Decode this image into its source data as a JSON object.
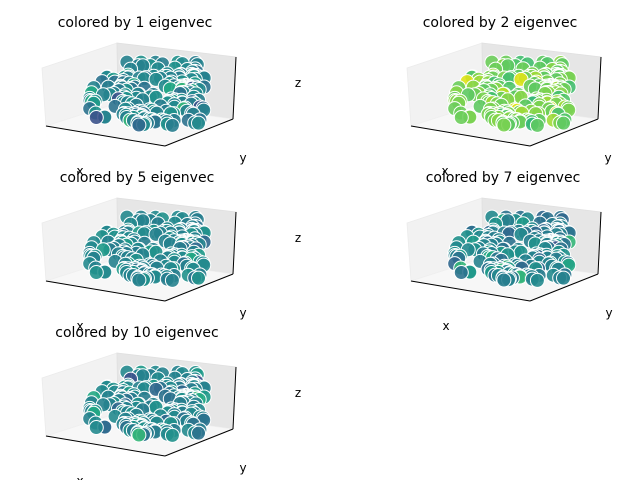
{
  "chart_data": [
    {
      "type": "scatter",
      "title": "colored by 1 eigenvec",
      "xlabel": "x",
      "ylabel": "y",
      "zlabel": "z",
      "projection": "3d",
      "colormap": "viridis",
      "grid": false,
      "palette": [
        "#3b528b",
        "#31688e",
        "#2c728e",
        "#287d8e",
        "#26828e",
        "#23898e",
        "#21918c",
        "#1f9a8a",
        "#22a884",
        "#35b779"
      ],
      "weights": [
        1,
        2,
        4,
        8,
        12,
        10,
        6,
        3,
        2,
        1
      ]
    },
    {
      "type": "scatter",
      "title": "colored by 2 eigenvec",
      "xlabel": "x",
      "ylabel": "y",
      "zlabel": "z",
      "projection": "3d",
      "colormap": "viridis",
      "grid": false,
      "palette": [
        "#35b779",
        "#44bf70",
        "#52c569",
        "#5ec962",
        "#6ccd5a",
        "#7ad151",
        "#86d549",
        "#a0da39",
        "#bddf26",
        "#dfe318"
      ],
      "weights": [
        1,
        3,
        5,
        10,
        12,
        10,
        6,
        3,
        1,
        1
      ]
    },
    {
      "type": "scatter",
      "title": "colored by 5 eigenvec",
      "xlabel": "x",
      "ylabel": "y",
      "zlabel": "z",
      "projection": "3d",
      "colormap": "viridis",
      "grid": false,
      "palette": [
        "#3b528b",
        "#31688e",
        "#2c728e",
        "#287d8e",
        "#26828e",
        "#23898e",
        "#21918c",
        "#1f9a8a",
        "#22a884",
        "#35b779"
      ],
      "weights": [
        0,
        1,
        3,
        8,
        14,
        12,
        6,
        2,
        1,
        0
      ]
    },
    {
      "type": "scatter",
      "title": "colored by 7 eigenvec",
      "xlabel": "x",
      "ylabel": "y",
      "zlabel": "z",
      "projection": "3d",
      "colormap": "viridis",
      "grid": false,
      "palette": [
        "#3b528b",
        "#31688e",
        "#2c728e",
        "#287d8e",
        "#26828e",
        "#23898e",
        "#21918c",
        "#1f9a8a",
        "#22a884",
        "#35b779"
      ],
      "weights": [
        2,
        4,
        6,
        9,
        10,
        8,
        6,
        3,
        2,
        2
      ]
    },
    {
      "type": "scatter",
      "title": "colored by 10 eigenvec",
      "xlabel": "x",
      "ylabel": "y",
      "zlabel": "z",
      "projection": "3d",
      "colormap": "viridis",
      "grid": false,
      "palette": [
        "#3b528b",
        "#31688e",
        "#2c728e",
        "#287d8e",
        "#26828e",
        "#23898e",
        "#21918c",
        "#1f9a8a",
        "#22a884",
        "#35b779"
      ],
      "weights": [
        1,
        2,
        4,
        8,
        13,
        11,
        6,
        2,
        1,
        1
      ]
    }
  ]
}
